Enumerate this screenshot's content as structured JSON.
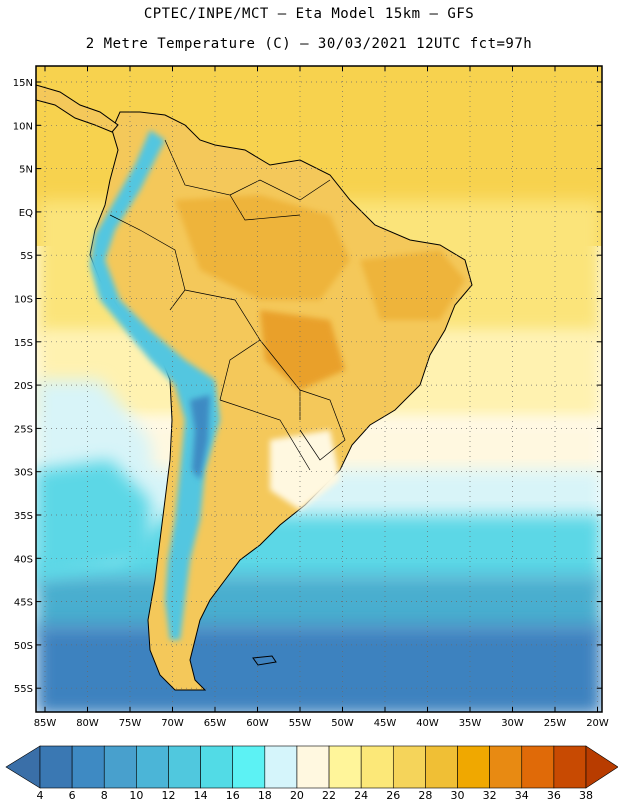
{
  "title_line1": "CPTEC/INPE/MCT –  Eta Model 15km – GFS",
  "title_line2": "2 Metre Temperature (C) – 30/03/2021 12UTC fct=97h",
  "lat_labels": [
    "15N",
    "10N",
    "5N",
    "EQ",
    "5S",
    "10S",
    "15S",
    "20S",
    "25S",
    "30S",
    "35S",
    "40S",
    "45S",
    "50S",
    "55S"
  ],
  "lon_labels": [
    "85W",
    "80W",
    "75W",
    "70W",
    "65W",
    "60W",
    "55W",
    "50W",
    "45W",
    "40W",
    "35W",
    "30W",
    "25W",
    "20W"
  ],
  "colorbar": {
    "labels": [
      "4",
      "6",
      "8",
      "10",
      "12",
      "14",
      "16",
      "18",
      "20",
      "22",
      "24",
      "26",
      "28",
      "30",
      "32",
      "34",
      "36",
      "38"
    ],
    "colors": [
      "#3a78b3",
      "#3e8ac3",
      "#48a0cd",
      "#4bb5d7",
      "#50c8de",
      "#52dbe6",
      "#5cf2f4",
      "#d5f5fb",
      "#fff8e0",
      "#fff59a",
      "#fce878",
      "#f5d45a",
      "#f0bf35",
      "#f0a800",
      "#e88a12",
      "#e06a08",
      "#c84a02"
    ],
    "low_arrow_color": "#3a6fa8",
    "high_arrow_color": "#b83c00"
  },
  "field_colors": {
    "ocean_north": "#f7d24e",
    "ocean_tropic": "#fbe47a",
    "ocean_sub": "#fff2b0",
    "ocean_cool": "#d8f4f8",
    "ocean_cold": "#5cd7e6",
    "ocean_colder": "#48aecf",
    "ocean_coldest": "#3e82bf",
    "land_hot": "#eeb43a",
    "land_warm": "#f4c85a",
    "andes": "#52c6e0",
    "andes_high": "#3e8ac3",
    "coastline": "#000000"
  }
}
